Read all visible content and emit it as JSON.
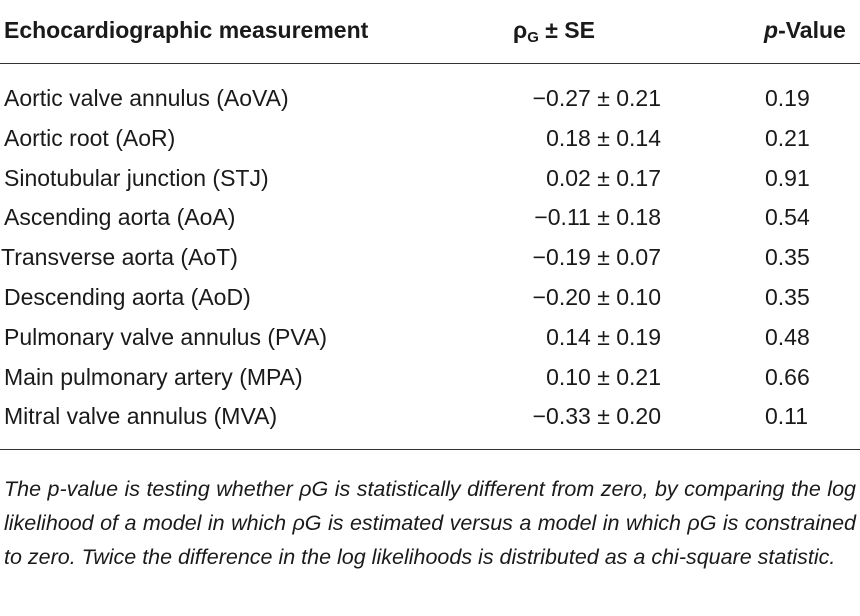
{
  "table": {
    "headers": {
      "measurement": "Echocardiographic measurement",
      "rho_symbol": "ρ",
      "rho_subscript": "G",
      "rho_suffix": " ± SE",
      "p_italic": "p",
      "p_suffix": "-Value"
    },
    "rows": [
      {
        "measurement": "Aortic valve annulus (AoVA)",
        "rho": "−0.27 ± 0.21",
        "p": "0.19"
      },
      {
        "measurement": "Aortic root (AoR)",
        "rho": "0.18 ± 0.14",
        "p": "0.21"
      },
      {
        "measurement": "Sinotubular junction (STJ)",
        "rho": "0.02 ± 0.17",
        "p": "0.91"
      },
      {
        "measurement": "Ascending aorta (AoA)",
        "rho": "−0.11 ± 0.18",
        "p": "0.54"
      },
      {
        "measurement": "Transverse aorta (AoT)",
        "rho": "−0.19 ± 0.07",
        "p": "0.35"
      },
      {
        "measurement": "Descending aorta (AoD)",
        "rho": "−0.20 ± 0.10",
        "p": "0.35"
      },
      {
        "measurement": "Pulmonary valve annulus (PVA)",
        "rho": "0.14 ± 0.19",
        "p": "0.48"
      },
      {
        "measurement": "Main pulmonary artery (MPA)",
        "rho": "0.10 ± 0.21",
        "p": "0.66"
      },
      {
        "measurement": "Mitral valve annulus (MVA)",
        "rho": "−0.33 ± 0.20",
        "p": "0.11"
      }
    ],
    "footnote": "The p-value is testing whether ρG is statistically different from zero, by comparing the log likelihood of a model in which ρG is estimated versus a model in which ρG is constrained to zero. Twice the difference in the log likelihoods is distributed as a chi-square statistic."
  }
}
